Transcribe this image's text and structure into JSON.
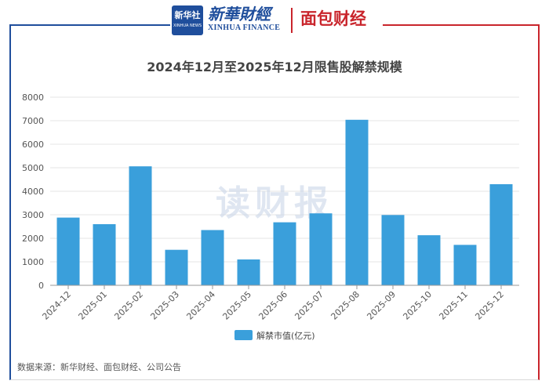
{
  "header": {
    "logo_cn": "新华社",
    "logo_en": "XINHUA NEWS",
    "brand_cn": "新華財經",
    "brand_en": "XINHUA FINANCE",
    "brand2": "面包财经"
  },
  "colors": {
    "bar": "#3a9fdb",
    "axis": "#999999",
    "grid": "#e6e6e6",
    "brand_blue": "#1f4e9c",
    "brand_red": "#c9252c"
  },
  "watermark": "读财报",
  "source": "数据来源：新华财经、面包财经、公司公告",
  "chart_data": {
    "type": "bar",
    "title": "2024年12月至2025年12月限售股解禁规模",
    "categories": [
      "2024-12",
      "2025-01",
      "2025-02",
      "2025-03",
      "2025-04",
      "2025-05",
      "2025-06",
      "2025-07",
      "2025-08",
      "2025-09",
      "2025-10",
      "2025-11",
      "2025-12"
    ],
    "series": [
      {
        "name": "解禁市值(亿元)",
        "values": [
          2880,
          2600,
          5060,
          1510,
          2350,
          1100,
          2680,
          3060,
          7040,
          2990,
          2130,
          1720,
          4300
        ]
      }
    ],
    "ylim": [
      0,
      8000
    ],
    "yticks": [
      0,
      1000,
      2000,
      3000,
      4000,
      5000,
      6000,
      7000,
      8000
    ],
    "grid": true,
    "legend_position": "bottom-center"
  }
}
